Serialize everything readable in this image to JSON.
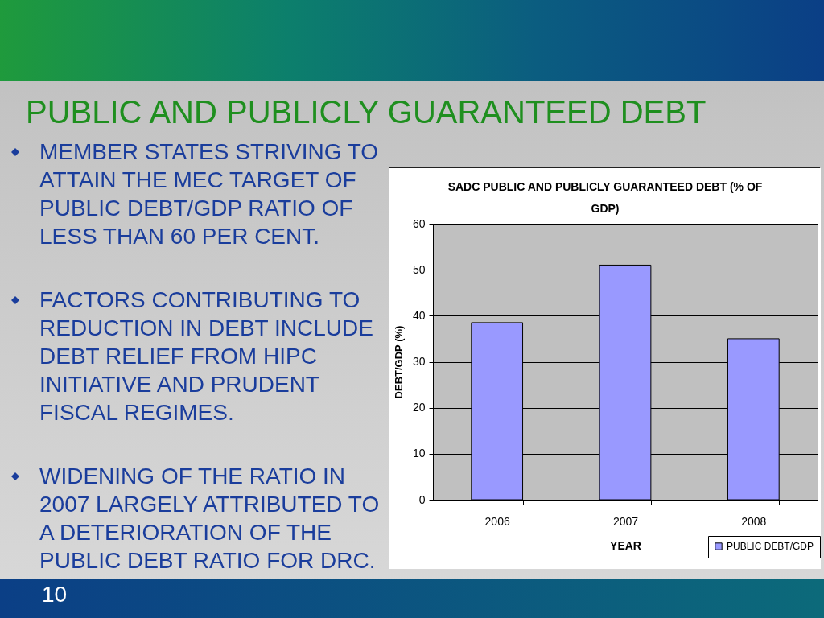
{
  "chart_data": {
    "type": "bar",
    "title": "PUBLIC AND PUBLICLY GUARANTEED DEBT",
    "subtitle": "SADC PUBLIC AND PUBLICLY GUARANTEED DEBT (% OF GDP)",
    "xlabel": "YEAR",
    "ylabel": "DEBT/GDP (%)",
    "categories": [
      "2006",
      "2007",
      "2008"
    ],
    "series": [
      {
        "name": "PUBLIC DEBT/GDP",
        "color": "#9999ff",
        "values": [
          38.5,
          51,
          35
        ]
      }
    ],
    "ylim": [
      0,
      60
    ],
    "yticks": [
      0,
      10,
      20,
      30,
      40,
      50,
      60
    ],
    "grid": "y",
    "legend": "bottom right",
    "annotations": [
      "MEMBER STATES STRIVING TO ATTAIN THE MEC TARGET OF PUBLIC DEBT/GDP RATIO OF LESS THAN 60 PER CENT.",
      "FACTORS CONTRIBUTING TO REDUCTION IN DEBT INCLUDE DEBT RELIEF FROM HIPC INITIATIVE AND PRUDENT FISCAL REGIMES.",
      "WIDENING OF THE RATIO IN 2007 LARGELY ATTRIBUTED TO A DETERIORATION OF THE PUBLIC DEBT RATIO FOR DRC.",
      "10"
    ]
  }
}
